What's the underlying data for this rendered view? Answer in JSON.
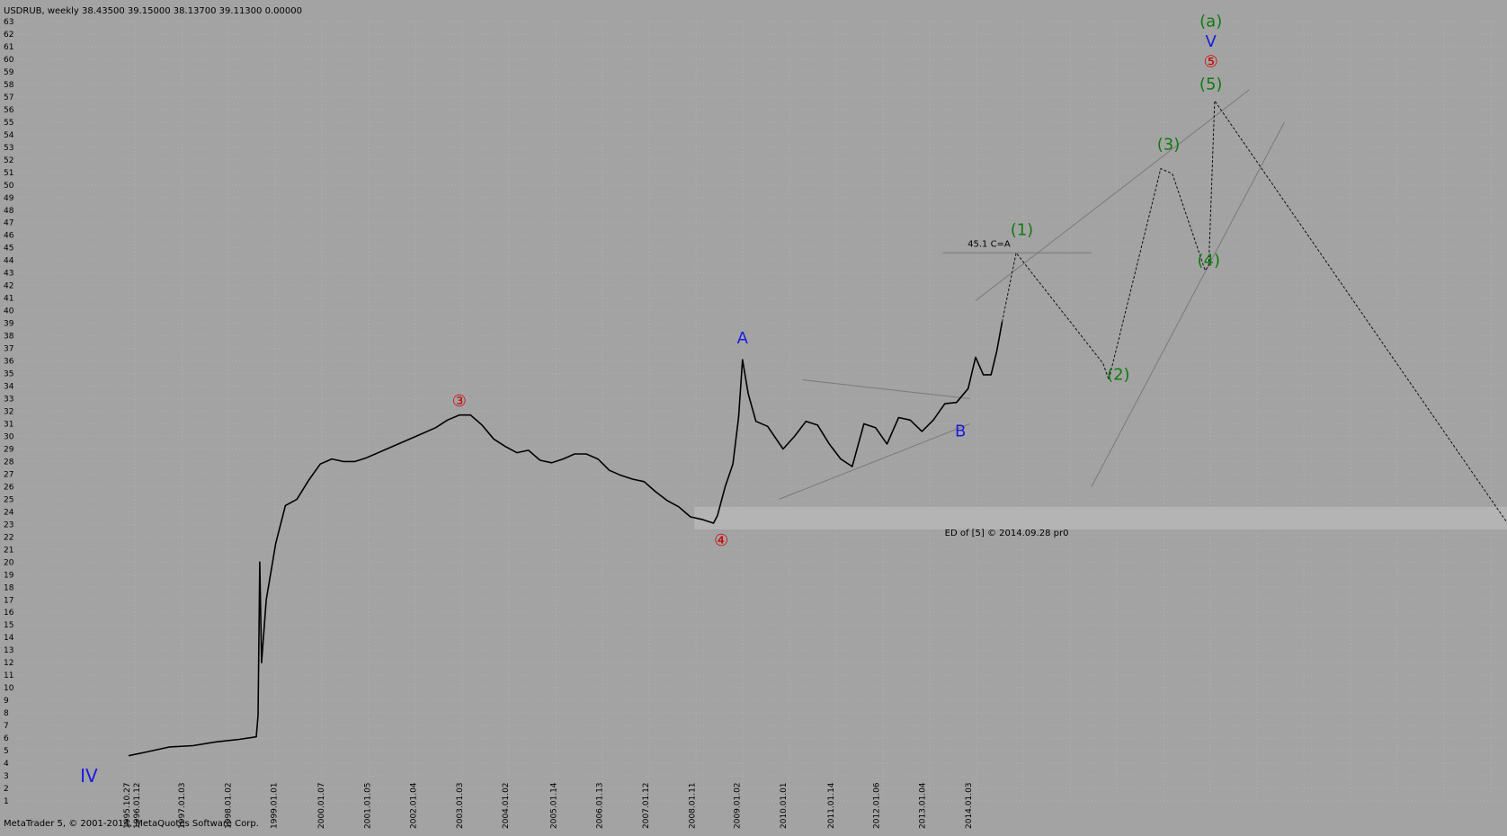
{
  "header": {
    "text": "USDRUB, weekly 38.43500 39.15000 38.13700 39.11300 0.00000"
  },
  "copyright": "MetaTrader 5, © 2001-2014, MetaQuotes Software Corp.",
  "colors": {
    "background": "#a3a3a3",
    "grid": "#b0b0b0",
    "price": "#000000",
    "wave_red": "#cc0000",
    "wave_green": "#107a10",
    "wave_blue": "#1a1adf",
    "zone": "#b7b7b7",
    "trendline": "#7a7a7a",
    "projection": "#111111"
  },
  "chart_data": {
    "type": "line",
    "title": "USDRUB, weekly",
    "symbol": "USDRUB",
    "timeframe": "weekly",
    "ohlc": {
      "open": 38.435,
      "high": 39.15,
      "low": 38.137,
      "close": 39.113,
      "extra": 0.0
    },
    "ylim": [
      1,
      63
    ],
    "y_ticks": [
      1,
      2,
      3,
      4,
      5,
      6,
      7,
      8,
      9,
      10,
      11,
      12,
      13,
      14,
      15,
      16,
      17,
      18,
      19,
      20,
      21,
      22,
      23,
      24,
      25,
      26,
      27,
      28,
      29,
      30,
      31,
      32,
      33,
      34,
      35,
      36,
      37,
      38,
      39,
      40,
      41,
      42,
      43,
      44,
      45,
      46,
      47,
      48,
      49,
      50,
      51,
      52,
      53,
      54,
      55,
      56,
      57,
      58,
      59,
      60,
      61,
      62,
      63
    ],
    "x_tick_labels": [
      "1995.10.27",
      "1996.01.12",
      "1997.01.03",
      "1998.01.02",
      "1999.01.01",
      "2000.01.07",
      "2001.01.05",
      "2002.01.04",
      "2003.01.03",
      "2004.01.02",
      "2005.01.14",
      "2006.01.13",
      "2007.01.12",
      "2008.01.11",
      "2009.01.02",
      "2010.01.01",
      "2011.01.14",
      "2012.01.06",
      "2013.01.04",
      "2014.01.03"
    ],
    "grid": true,
    "series": [
      {
        "x": [
          "1995-11-10",
          "1996-04-01",
          "1996-10-01",
          "1997-04-01",
          "1997-10-01",
          "1998-04-01",
          "1998-08-14",
          "1998-08-28",
          "1998-09-11",
          "1998-09-25",
          "1998-11-01",
          "1999-01-15",
          "1999-04-01",
          "1999-07-01",
          "1999-10-01",
          "2000-01-01",
          "2000-04-01",
          "2000-07-01",
          "2000-10-01",
          "2001-01-01",
          "2001-07-01",
          "2002-01-01",
          "2002-07-01",
          "2002-10-01",
          "2003-01-03",
          "2003-04-01",
          "2003-07-01",
          "2003-10-01",
          "2004-01-01",
          "2004-04-01",
          "2004-07-01",
          "2004-10-01",
          "2005-01-01",
          "2005-04-01",
          "2005-07-01",
          "2005-10-01",
          "2006-01-01",
          "2006-04-01",
          "2006-07-01",
          "2006-10-01",
          "2007-01-01",
          "2007-04-01",
          "2007-07-01",
          "2007-10-01",
          "2008-01-01",
          "2008-04-01",
          "2008-07-01",
          "2008-08-01",
          "2008-10-01",
          "2008-12-01",
          "2009-01-15",
          "2009-02-15",
          "2009-04-01",
          "2009-06-01",
          "2009-09-01",
          "2010-01-01",
          "2010-04-01",
          "2010-07-01",
          "2010-10-01",
          "2011-01-01",
          "2011-04-01",
          "2011-07-01",
          "2011-10-01",
          "2012-01-01",
          "2012-04-01",
          "2012-07-01",
          "2012-10-01",
          "2013-01-01",
          "2013-04-01",
          "2013-07-01",
          "2013-10-01",
          "2014-01-01",
          "2014-03-01",
          "2014-05-01",
          "2014-07-01",
          "2014-08-15",
          "2014-09-26"
        ],
        "y": [
          4.6,
          4.9,
          5.3,
          5.4,
          5.7,
          5.9,
          6.1,
          7.8,
          20.0,
          12.0,
          17.0,
          21.5,
          24.5,
          25.0,
          26.5,
          27.8,
          28.2,
          28.0,
          28.0,
          28.3,
          29.1,
          29.9,
          30.7,
          31.3,
          31.7,
          31.7,
          30.9,
          29.8,
          29.2,
          28.7,
          28.9,
          28.1,
          27.9,
          28.2,
          28.6,
          28.6,
          28.2,
          27.3,
          26.9,
          26.6,
          26.4,
          25.6,
          24.9,
          24.4,
          23.6,
          23.4,
          23.1,
          23.7,
          26.0,
          27.8,
          31.5,
          36.1,
          33.4,
          31.2,
          30.8,
          29.0,
          30.0,
          31.2,
          30.9,
          29.4,
          28.2,
          27.6,
          31.0,
          30.7,
          29.4,
          31.5,
          31.3,
          30.4,
          31.3,
          32.6,
          32.7,
          33.8,
          36.3,
          34.9,
          34.9,
          36.8,
          39.1
        ]
      }
    ],
    "wave_labels": [
      {
        "text": "③",
        "x": "2003-01-03",
        "y": 32.4,
        "color": "red"
      },
      {
        "text": "④",
        "x": "2008-09-01",
        "y": 21.3,
        "color": "red"
      },
      {
        "text": "A",
        "x": "2009-02-15",
        "y": 37.4,
        "color": "blue"
      },
      {
        "text": "B",
        "x": "2013-11-01",
        "y": 30.0,
        "color": "blue"
      },
      {
        "text": "(1)",
        "x": "2015-03-01",
        "y": 46.0,
        "color": "green"
      },
      {
        "text": "(2)",
        "x": "2017-04-01",
        "y": 34.5,
        "color": "green"
      },
      {
        "text": "(3)",
        "x": "2018-05-01",
        "y": 52.8,
        "color": "green"
      },
      {
        "text": "(4)",
        "x": "2019-03-15",
        "y": 43.6,
        "color": "green"
      },
      {
        "text": "(5)",
        "x": "2019-04-01",
        "y": 57.6,
        "color": "green"
      },
      {
        "text": "⑤",
        "x": "2019-04-01",
        "y": 59.4,
        "color": "red"
      },
      {
        "text": "V",
        "x": "2019-04-01",
        "y": 61.0,
        "color": "blue"
      },
      {
        "text": "(a)",
        "x": "2019-04-01",
        "y": 62.6,
        "color": "green"
      }
    ],
    "annotations": [
      {
        "text": "45.1  C=A",
        "x": "2014-06-15",
        "y": 45.1
      },
      {
        "text": "ED of [5] © 2014.09.28 pr0",
        "x": "2014-11-01",
        "y": 22.1
      },
      {
        "text": "IV",
        "x": "1995-01-01",
        "y": 2.5
      }
    ],
    "projection_path": {
      "x": [
        "2014-09-26",
        "2015-01-15",
        "2016-12-01",
        "2017-01-15",
        "2018-03-01",
        "2018-06-01",
        "2019-02-15",
        "2019-03-15",
        "2019-05-01",
        "2025-10-01"
      ],
      "y": [
        39.1,
        44.6,
        35.8,
        34.5,
        51.3,
        50.9,
        43.2,
        43.6,
        56.7,
        22.6
      ]
    }
  }
}
